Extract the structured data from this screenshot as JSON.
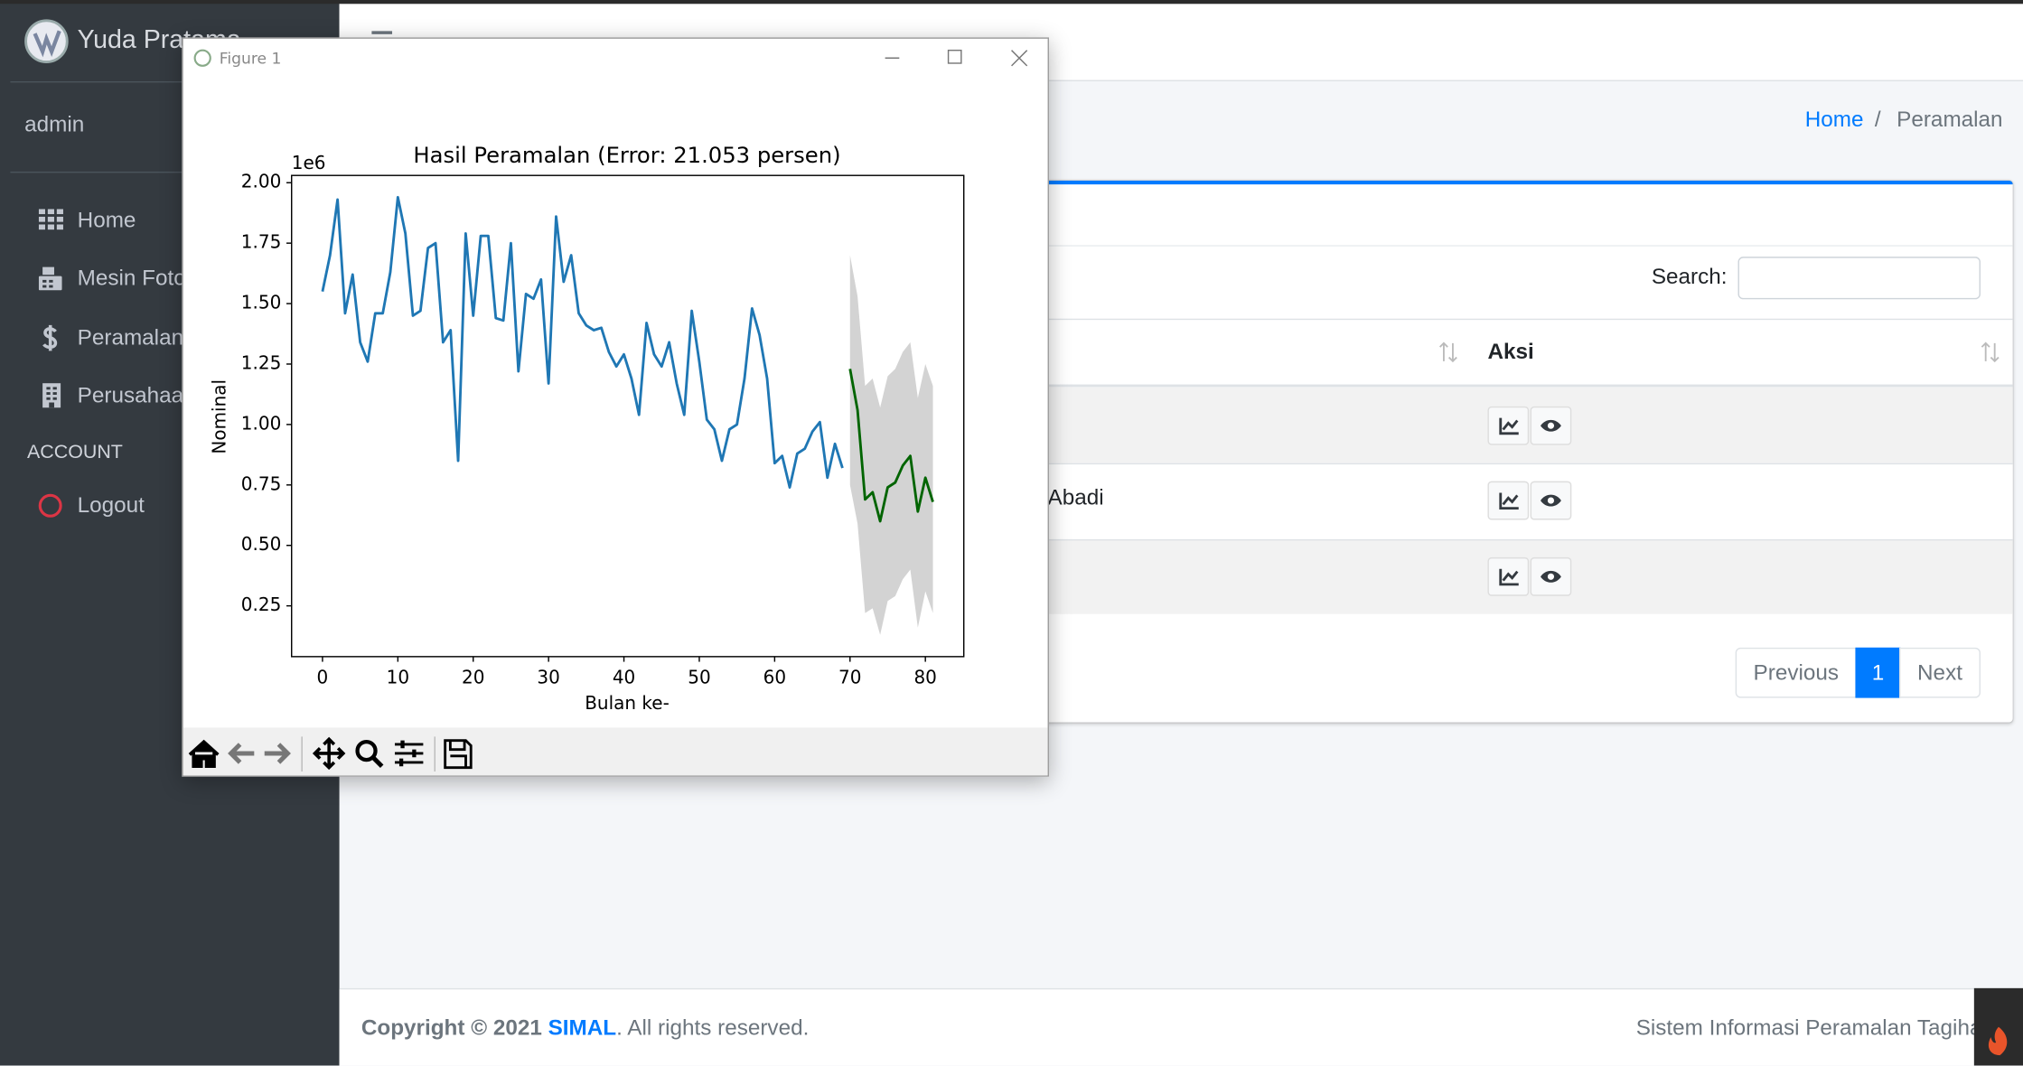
{
  "brand": "Yuda Pratama",
  "user": "admin",
  "menu": [
    "Home",
    "Mesin Fotocopy",
    "Peramalan",
    "Perusahaan"
  ],
  "section": "ACCOUNT",
  "logout": "Logout",
  "breadcrumb": [
    "Home",
    "Peramalan"
  ],
  "breadcrumb_separator": "/",
  "search_label": "Search:",
  "table": {
    "header": "Aksi",
    "visible_cell": "Abadi"
  },
  "pagination": [
    "Previous",
    "1",
    "Next"
  ],
  "footer": {
    "copyright": "Copyright © 2021",
    "brand": "SIMAL",
    "rights": ". All rights reserved.",
    "app": "Sistem Informasi Peramalan Tagihan"
  },
  "window": {
    "title": "Figure 1"
  },
  "chart_data": {
    "type": "line",
    "title": "Hasil Peramalan (Error: 21.053 persen)",
    "xlabel": "Bulan ke-",
    "ylabel": "Nominal",
    "y_offset_label": "1e6",
    "xlim": [
      -4.1,
      85.1
    ],
    "ylim": [
      0.04,
      2.03
    ],
    "xticks": [
      0,
      10,
      20,
      30,
      40,
      50,
      60,
      70,
      80
    ],
    "yticks": [
      0.25,
      {
        "value": 0.5,
        "label": "0.50"
      },
      0.75,
      {
        "value": 1,
        "label": "1.00"
      },
      1.25,
      {
        "value": 1.5,
        "label": "1.50"
      },
      1.75,
      {
        "value": 2,
        "label": "2.00"
      }
    ],
    "band": {
      "color": "#d3d3d3",
      "x": [
        70,
        71,
        72,
        73,
        74,
        75,
        76,
        77,
        78,
        79,
        80,
        81
      ],
      "upper": [
        1.7,
        1.53,
        1.16,
        1.19,
        1.07,
        1.2,
        1.23,
        1.3,
        1.34,
        1.11,
        1.25,
        1.16
      ],
      "lower": [
        0.75,
        0.59,
        0.22,
        0.24,
        0.13,
        0.27,
        0.29,
        0.36,
        0.4,
        0.16,
        0.31,
        0.22
      ]
    },
    "series": [
      {
        "color": "#1f77b4",
        "x": [
          0,
          1,
          2,
          3,
          4,
          5,
          6,
          7,
          8,
          9,
          10,
          11,
          12,
          13,
          14,
          15,
          16,
          17,
          18,
          19,
          20,
          21,
          22,
          23,
          24,
          25,
          26,
          27,
          28,
          29,
          30,
          31,
          32,
          33,
          34,
          35,
          36,
          37,
          38,
          39,
          40,
          41,
          42,
          43,
          44,
          45,
          46,
          47,
          48,
          49,
          50,
          51,
          52,
          53,
          54,
          55,
          56,
          57,
          58,
          59,
          60,
          61,
          62,
          63,
          64,
          65,
          66,
          67,
          68,
          69
        ],
        "values": [
          1.55,
          1.7,
          1.93,
          1.46,
          1.62,
          1.34,
          1.26,
          1.46,
          1.46,
          1.63,
          1.94,
          1.79,
          1.45,
          1.47,
          1.73,
          1.75,
          1.34,
          1.39,
          0.85,
          1.79,
          1.45,
          1.78,
          1.78,
          1.44,
          1.43,
          1.75,
          1.22,
          1.54,
          1.52,
          1.6,
          1.17,
          1.86,
          1.59,
          1.7,
          1.46,
          1.41,
          1.39,
          1.4,
          1.3,
          1.24,
          1.29,
          1.19,
          1.04,
          1.42,
          1.29,
          1.24,
          1.34,
          1.17,
          1.04,
          1.47,
          1.26,
          1.02,
          0.98,
          0.85,
          0.98,
          1.0,
          1.19,
          1.48,
          1.37,
          1.19,
          0.84,
          0.87,
          0.74,
          0.88,
          0.9,
          0.97,
          1.01,
          0.78,
          0.92,
          0.82
        ]
      },
      {
        "color": "#006400",
        "x": [
          70,
          71,
          72,
          73,
          74,
          75,
          76,
          77,
          78,
          79,
          80,
          81
        ],
        "values": [
          1.23,
          1.06,
          0.69,
          0.72,
          0.6,
          0.74,
          0.76,
          0.83,
          0.87,
          0.64,
          0.78,
          0.68
        ]
      }
    ]
  }
}
